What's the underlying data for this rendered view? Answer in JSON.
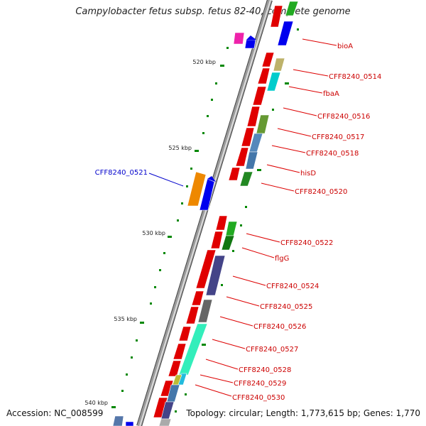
{
  "title": "Campylobacter fetus subsp. fetus 82-40, complete genome",
  "footer": {
    "accession": "Accession: NC_008599",
    "summary": "Topology: circular; Length: 1,773,615 bp; Genes: 1,770"
  },
  "scale_labels": [
    "520 kbp",
    "525 kbp",
    "530 kbp",
    "535 kbp",
    "540 kbp"
  ],
  "gene_labels": [
    {
      "text": "bioA",
      "color": "#cc0000"
    },
    {
      "text": "CFF8240_0514",
      "color": "#cc0000"
    },
    {
      "text": "fbaA",
      "color": "#cc0000"
    },
    {
      "text": "CFF8240_0516",
      "color": "#cc0000"
    },
    {
      "text": "CFF8240_0517",
      "color": "#cc0000"
    },
    {
      "text": "CFF8240_0518",
      "color": "#cc0000"
    },
    {
      "text": "hisD",
      "color": "#cc0000"
    },
    {
      "text": "CFF8240_0520",
      "color": "#cc0000"
    },
    {
      "text": "CFF8240_0521",
      "color": "#0000cc"
    },
    {
      "text": "CFF8240_0522",
      "color": "#cc0000"
    },
    {
      "text": "flgG",
      "color": "#cc0000"
    },
    {
      "text": "CFF8240_0524",
      "color": "#cc0000"
    },
    {
      "text": "CFF8240_0525",
      "color": "#cc0000"
    },
    {
      "text": "CFF8240_0526",
      "color": "#cc0000"
    },
    {
      "text": "CFF8240_0527",
      "color": "#cc0000"
    },
    {
      "text": "CFF8240_0528",
      "color": "#cc0000"
    },
    {
      "text": "CFF8240_0529",
      "color": "#cc0000"
    },
    {
      "text": "CFF8240_0530",
      "color": "#cc0000"
    }
  ],
  "colors": {
    "forward_strand": "#ee0000",
    "reverse_strand": "#0000ee",
    "backbone": "#888888",
    "tick": "#008800"
  }
}
